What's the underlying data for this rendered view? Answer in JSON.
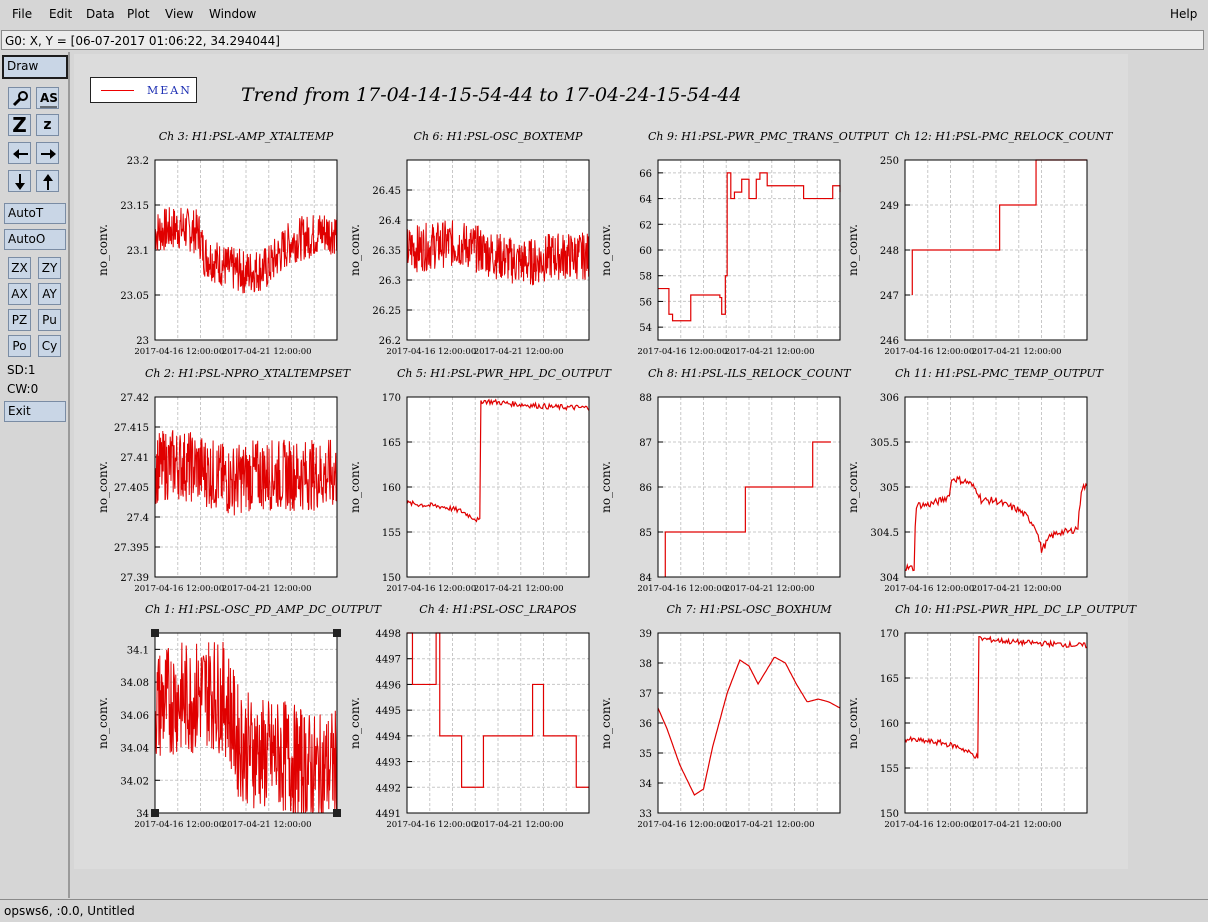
{
  "menu": {
    "items": [
      {
        "label": "File"
      },
      {
        "label": "Edit"
      },
      {
        "label": "Data"
      },
      {
        "label": "Plot"
      },
      {
        "label": "View"
      },
      {
        "label": "Window"
      }
    ],
    "help": "Help"
  },
  "coord_readout": "G0: X, Y = [06-07-2017 01:06:22, 34.294044]",
  "toolbar": {
    "draw": "Draw",
    "auto_t": "AutoT",
    "auto_o": "AutoO",
    "zx": "ZX",
    "zy": "ZY",
    "ax": "AX",
    "ay": "AY",
    "pz": "PZ",
    "pu": "Pu",
    "po": "Po",
    "cy": "Cy",
    "sd": "SD:1",
    "cw": "CW:0",
    "exit": "Exit",
    "z_big": "Z",
    "z_small": "z",
    "as_label": "AS"
  },
  "legend": {
    "label": "MEAN",
    "color": "#e00000"
  },
  "title": "Trend from 17-04-14-15-54-44 to 17-04-24-15-54-44",
  "status": "opsws6, :0.0, Untitled",
  "chart_data": [
    {
      "type": "line",
      "channel": "Ch 3: H1:PSL-AMP_XTALTEMP",
      "ylabel": "no_conv.",
      "ylim": [
        23,
        23.2
      ],
      "yticks": [
        "23",
        "23.05",
        "23.1",
        "23.15",
        "23.2"
      ],
      "xticks": [
        "2017-04-16 12:00:00",
        "2017-04-21 12:00:00"
      ],
      "noisy": true,
      "x": [
        0,
        0.12,
        0.24,
        0.27,
        0.4,
        0.5,
        0.62,
        0.68,
        0.75,
        0.85,
        0.92,
        1
      ],
      "y": [
        23.12,
        23.125,
        23.12,
        23.095,
        23.08,
        23.075,
        23.08,
        23.095,
        23.11,
        23.115,
        23.12,
        23.12
      ],
      "noise": 0.025
    },
    {
      "type": "line",
      "channel": "Ch 6: H1:PSL-OSC_BOXTEMP",
      "ylabel": "no_conv.",
      "ylim": [
        26.2,
        26.5
      ],
      "yticks": [
        "26.2",
        "26.25",
        "26.3",
        "26.35",
        "26.4",
        "26.45"
      ],
      "xticks": [
        "2017-04-16 12:00:00",
        "2017-04-21 12:00:00"
      ],
      "noisy": true,
      "x": [
        0,
        0.2,
        0.3,
        0.4,
        0.5,
        0.6,
        0.7,
        0.8,
        1
      ],
      "y": [
        26.35,
        26.36,
        26.36,
        26.35,
        26.34,
        26.33,
        26.33,
        26.34,
        26.34
      ],
      "noise": 0.04
    },
    {
      "type": "line",
      "channel": "Ch 9: H1:PSL-PWR_PMC_TRANS_OUTPUT",
      "ylabel": "no_conv.",
      "ylim": [
        53,
        67
      ],
      "yticks": [
        "54",
        "56",
        "58",
        "60",
        "62",
        "64",
        "66"
      ],
      "xticks": [
        "2017-04-16 12:00:00",
        "2017-04-21 12:00:00"
      ],
      "step": true,
      "x": [
        0,
        0.05,
        0.06,
        0.08,
        0.12,
        0.17,
        0.18,
        0.24,
        0.26,
        0.34,
        0.35,
        0.37,
        0.38,
        0.4,
        0.42,
        0.46,
        0.5,
        0.54,
        0.56,
        0.6,
        0.64,
        0.66,
        0.72,
        0.78,
        0.8,
        0.88,
        0.9,
        0.95,
        0.96,
        1
      ],
      "y": [
        57,
        57,
        55,
        54.5,
        54.5,
        54.5,
        56.5,
        56.5,
        56.5,
        56.3,
        55,
        58,
        66,
        64,
        64.5,
        65.5,
        64,
        65.5,
        66,
        65,
        65,
        65,
        65,
        65,
        64,
        64,
        64,
        64,
        65,
        64.5
      ]
    },
    {
      "type": "line",
      "channel": "Ch 12: H1:PSL-PMC_RELOCK_COUNT",
      "ylabel": "no_conv.",
      "ylim": [
        246,
        250
      ],
      "yticks": [
        "246",
        "247",
        "248",
        "249",
        "250"
      ],
      "xticks": [
        "2017-04-16 12:00:00",
        "2017-04-21 12:00:00"
      ],
      "step": true,
      "x": [
        0.04,
        0.04,
        0.08,
        0.28,
        0.28,
        0.52,
        0.52,
        0.6,
        0.6,
        0.72,
        0.72,
        1
      ],
      "y": [
        247,
        248,
        248,
        248,
        248,
        248,
        249,
        249,
        249,
        249,
        250,
        250
      ]
    },
    {
      "type": "line",
      "channel": "Ch 2: H1:PSL-NPRO_XTALTEMPSET",
      "ylabel": "no_conv.",
      "ylim": [
        27.39,
        27.42
      ],
      "yticks": [
        "27.39",
        "27.395",
        "27.4",
        "27.405",
        "27.41",
        "27.415",
        "27.42"
      ],
      "xticks": [
        "2017-04-16 12:00:00",
        "2017-04-21 12:00:00"
      ],
      "noisy": true,
      "x": [
        0,
        0.1,
        0.25,
        0.4,
        0.55,
        0.7,
        0.85,
        1
      ],
      "y": [
        27.408,
        27.409,
        27.408,
        27.406,
        27.407,
        27.407,
        27.407,
        27.407
      ],
      "noise": 0.006
    },
    {
      "type": "line",
      "channel": "Ch 5: H1:PSL-PWR_HPL_DC_OUTPUT",
      "ylabel": "no_conv.",
      "ylim": [
        150,
        170
      ],
      "yticks": [
        "150",
        "155",
        "160",
        "165",
        "170"
      ],
      "xticks": [
        "2017-04-16 12:00:00",
        "2017-04-21 12:00:00"
      ],
      "x": [
        0,
        0.1,
        0.2,
        0.3,
        0.4,
        0.4,
        0.45,
        0.6,
        0.8,
        1
      ],
      "y": [
        158.2,
        158,
        157.8,
        157.3,
        156.2,
        169.6,
        169.5,
        169.2,
        168.9,
        168.8
      ],
      "noise": 0.6
    },
    {
      "type": "line",
      "channel": "Ch 8: H1:PSL-ILS_RELOCK_COUNT",
      "ylabel": "no_conv.",
      "ylim": [
        84,
        88
      ],
      "yticks": [
        "84",
        "85",
        "86",
        "87",
        "88"
      ],
      "xticks": [
        "2017-04-16 12:00:00",
        "2017-04-21 12:00:00"
      ],
      "step": true,
      "x": [
        0.04,
        0.04,
        0.06,
        0.06,
        0.12,
        0.48,
        0.48,
        0.85,
        0.85,
        0.95
      ],
      "y": [
        84,
        85,
        85,
        85,
        85,
        85,
        86,
        86,
        87,
        87
      ]
    },
    {
      "type": "line",
      "channel": "Ch 11: H1:PSL-PMC_TEMP_OUTPUT",
      "ylabel": "no_conv.",
      "ylim": [
        304,
        306
      ],
      "yticks": [
        "304",
        "304.5",
        "305",
        "305.5",
        "306"
      ],
      "xticks": [
        "2017-04-16 12:00:00",
        "2017-04-21 12:00:00"
      ],
      "x": [
        0,
        0.05,
        0.06,
        0.12,
        0.2,
        0.24,
        0.26,
        0.35,
        0.4,
        0.42,
        0.5,
        0.55,
        0.62,
        0.68,
        0.72,
        0.75,
        0.8,
        0.85,
        0.9,
        0.95,
        0.97,
        1
      ],
      "y": [
        304.1,
        304.1,
        304.8,
        304.8,
        304.85,
        304.9,
        305.1,
        305.05,
        304.95,
        304.85,
        304.85,
        304.8,
        304.75,
        304.65,
        304.55,
        304.3,
        304.45,
        304.5,
        304.5,
        304.55,
        305,
        305
      ],
      "noise": 0.08
    },
    {
      "type": "line",
      "channel": "Ch 1: H1:PSL-OSC_PD_AMP_DC_OUTPUT",
      "ylabel": "no_conv.",
      "ylim": [
        34,
        34.11
      ],
      "yticks": [
        "34",
        "34.02",
        "34.04",
        "34.06",
        "34.08",
        "34.1"
      ],
      "xticks": [
        "2017-04-16 12:00:00",
        "2017-04-21 12:00:00"
      ],
      "noisy": true,
      "x": [
        0,
        0.1,
        0.2,
        0.3,
        0.4,
        0.45,
        0.5,
        0.6,
        0.7,
        0.8,
        0.9,
        1
      ],
      "y": [
        34.065,
        34.07,
        34.07,
        34.075,
        34.068,
        34.045,
        34.04,
        34.035,
        34.035,
        34.03,
        34.025,
        34.03
      ],
      "noise": 0.035
    },
    {
      "type": "line",
      "channel": "Ch 4: H1:PSL-OSC_LRAPOS",
      "ylabel": "no_conv.",
      "ylim": [
        4491,
        4498
      ],
      "yticks": [
        "4491",
        "4492",
        "4493",
        "4494",
        "4495",
        "4496",
        "4497",
        "4498"
      ],
      "xticks": [
        "2017-04-16 12:00:00",
        "2017-04-21 12:00:00"
      ],
      "step": true,
      "x": [
        0,
        0.03,
        0.03,
        0.16,
        0.16,
        0.18,
        0.18,
        0.3,
        0.3,
        0.42,
        0.42,
        0.6,
        0.6,
        0.69,
        0.69,
        0.75,
        0.75,
        0.8,
        0.8,
        0.87,
        0.87,
        0.93,
        0.93,
        1
      ],
      "y": [
        4498,
        4498,
        4496,
        4498,
        4498,
        4494,
        4494,
        4492,
        4492,
        4492,
        4494,
        4494,
        4494,
        4494,
        4496,
        4496,
        4494,
        4494,
        4494,
        4494,
        4494,
        4494,
        4492,
        4492
      ]
    },
    {
      "type": "line",
      "channel": "Ch 7: H1:PSL-OSC_BOXHUM",
      "ylabel": "no_conv.",
      "ylim": [
        33,
        39
      ],
      "yticks": [
        "33",
        "34",
        "35",
        "36",
        "37",
        "38",
        "39"
      ],
      "xticks": [
        "2017-04-16 12:00:00",
        "2017-04-21 12:00:00"
      ],
      "x": [
        0,
        0.05,
        0.12,
        0.2,
        0.25,
        0.3,
        0.38,
        0.45,
        0.5,
        0.55,
        0.6,
        0.64,
        0.7,
        0.76,
        0.82,
        0.88,
        0.94,
        1
      ],
      "y": [
        36.5,
        35.8,
        34.6,
        33.6,
        33.8,
        35.2,
        37.0,
        38.1,
        37.9,
        37.3,
        37.8,
        38.2,
        38.0,
        37.3,
        36.7,
        36.8,
        36.7,
        36.5
      ]
    },
    {
      "type": "line",
      "channel": "Ch 10: H1:PSL-PWR_HPL_DC_LP_OUTPUT",
      "ylabel": "no_conv.",
      "ylim": [
        150,
        170
      ],
      "yticks": [
        "150",
        "155",
        "160",
        "165",
        "170"
      ],
      "xticks": [
        "2017-04-16 12:00:00",
        "2017-04-21 12:00:00"
      ],
      "x": [
        0,
        0.1,
        0.2,
        0.3,
        0.4,
        0.4,
        0.45,
        0.6,
        0.8,
        1
      ],
      "y": [
        158.2,
        158,
        157.8,
        157.3,
        156.2,
        169.4,
        169.3,
        169.0,
        168.8,
        168.6
      ],
      "noise": 0.6
    }
  ]
}
